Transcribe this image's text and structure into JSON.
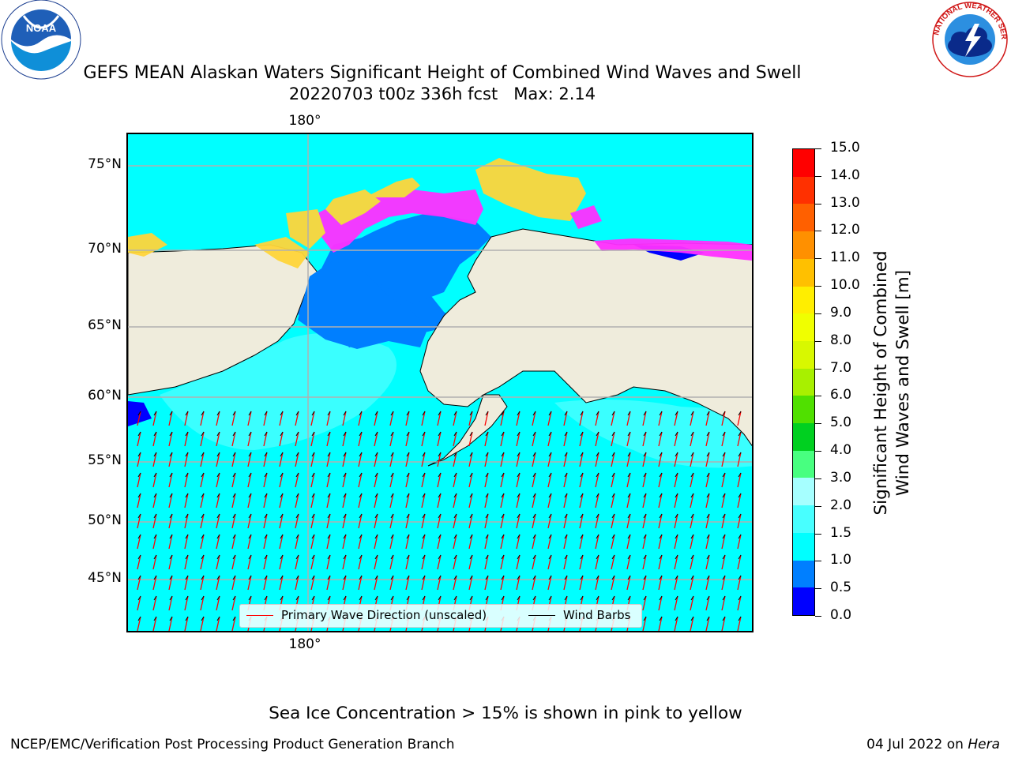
{
  "title": {
    "line1": "GEFS MEAN Alaskan Waters Significant Height of Combined Wind Waves and Swell",
    "line2": "20220703 t00z 336h fcst   Max: 2.14"
  },
  "logos": {
    "noaa": {
      "text": "NOAA",
      "ring_text": "NATIONAL OCEANIC AND ATMOSPHERIC ADMINISTRATION · U.S. DEPARTMENT OF COMMERCE"
    },
    "nws": {
      "ring_text": "NATIONAL WEATHER SERVICE"
    }
  },
  "map": {
    "region": "Alaskan Waters",
    "lat_labels": [
      "75°N",
      "70°N",
      "65°N",
      "60°N",
      "55°N",
      "50°N",
      "45°N"
    ],
    "lon_label_top": "180°",
    "lon_label_bottom": "180°",
    "colors": {
      "land": "#efecdc",
      "ocean_main": "#00ffff",
      "ocean_light": "#48ffff",
      "ocean_mid": "#007fff",
      "ocean_low": "#0000ff",
      "ice_pink": "#ff30ff",
      "ice_yellow": "#ffd53a",
      "arrow": "#ff0000",
      "barb": "#000000",
      "grid": "#b0b0b0"
    }
  },
  "legend": {
    "items": [
      {
        "label": "Primary Wave Direction (unscaled)",
        "color": "#ff0000"
      },
      {
        "label": "Wind Barbs",
        "color": "#000000"
      }
    ]
  },
  "colorbar": {
    "title_line1": "Significant Height of Combined",
    "title_line2": "Wind Waves and Swell [m]",
    "ticks": [
      "0.0",
      "0.5",
      "1.0",
      "1.5",
      "2.0",
      "3.0",
      "4.0",
      "5.0",
      "6.0",
      "7.0",
      "8.0",
      "9.0",
      "10.0",
      "11.0",
      "12.0",
      "13.0",
      "14.0",
      "15.0"
    ],
    "colors": [
      "#0000ff",
      "#007fff",
      "#00ffff",
      "#48ffff",
      "#a6ffff",
      "#48ff80",
      "#00d020",
      "#50e000",
      "#a8f000",
      "#d8f800",
      "#f0ff00",
      "#ffee00",
      "#ffc000",
      "#ff9000",
      "#ff6000",
      "#ff3000",
      "#ff0000"
    ]
  },
  "footnote": "Sea Ice Concentration > 15% is shown in pink to yellow",
  "footer": {
    "left": "NCEP/EMC/Verification Post Processing Product Generation Branch",
    "right_date": "04 Jul 2022 on",
    "right_host": "Hera"
  }
}
